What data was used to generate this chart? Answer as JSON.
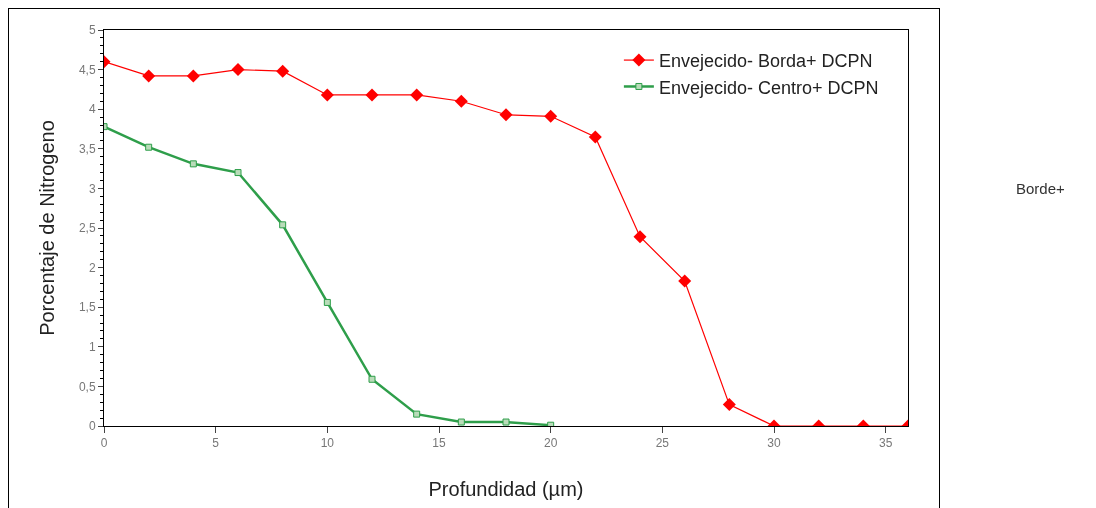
{
  "chart_data": {
    "type": "line",
    "xlabel": "Profundidad (µm)",
    "ylabel": "Porcentaje de Nitrogeno",
    "xlim": [
      0,
      36
    ],
    "xticks": [
      0,
      5,
      10,
      15,
      20,
      25,
      30,
      35
    ],
    "ylim": [
      0,
      5
    ],
    "yticks": [
      0,
      {
        "value": 0.5,
        "label": "0,5"
      },
      1,
      {
        "value": 1.5,
        "label": "1,5"
      },
      2,
      {
        "value": 2.5,
        "label": "2,5"
      },
      3,
      {
        "value": 3.5,
        "label": "3,5"
      },
      4,
      {
        "value": 4.5,
        "label": "4,5"
      },
      5
    ],
    "grid": false,
    "legend": "top right",
    "line_style": "solid",
    "annotations": [
      "Borde+"
    ],
    "series": [
      {
        "name": "Envejecido- Borda+ DCPN",
        "color": "#ff0000",
        "marker": "diamond",
        "x": [
          0,
          2,
          4,
          6,
          8,
          10,
          12,
          14,
          16,
          18,
          20,
          22,
          24,
          26,
          28,
          30,
          32,
          34,
          36
        ],
        "values": [
          4.6,
          4.42,
          4.42,
          4.5,
          4.48,
          4.18,
          4.18,
          4.18,
          4.1,
          3.93,
          3.91,
          3.65,
          2.39,
          1.83,
          0.27,
          0,
          0,
          0,
          0
        ]
      },
      {
        "name": "Envejecido- Centro+ DCPN",
        "color": "#2e9e4a",
        "marker": "square",
        "x": [
          0,
          2,
          4,
          6,
          8,
          10,
          12,
          14,
          16,
          18,
          20
        ],
        "values": [
          3.78,
          3.52,
          3.31,
          3.2,
          2.54,
          1.56,
          0.59,
          0.15,
          0.05,
          0.05,
          0.01
        ]
      }
    ]
  }
}
